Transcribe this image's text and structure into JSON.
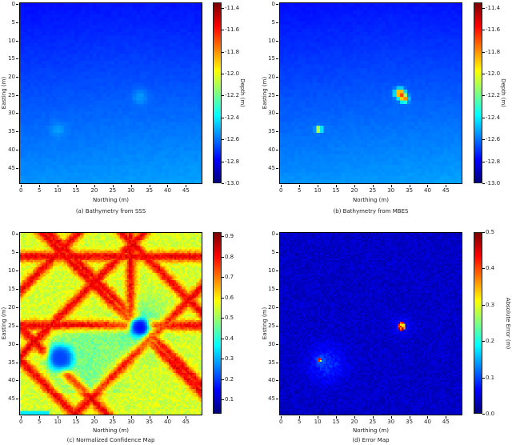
{
  "chart_data": [
    {
      "id": "a",
      "type": "heatmap",
      "title": "(a) Bathymetry from SSS",
      "xlabel": "Northing (m)",
      "ylabel": "Easting (m)",
      "xticks": [
        "0",
        "5",
        "10",
        "15",
        "20",
        "25",
        "30",
        "35",
        "40",
        "45"
      ],
      "yticks": [
        "0",
        "5",
        "10",
        "15",
        "20",
        "25",
        "30",
        "35",
        "40",
        "45"
      ],
      "xlim": [
        0,
        50
      ],
      "ylim": [
        0,
        50
      ],
      "colormap": "jet",
      "colorbar": {
        "label": "Depth (m)",
        "ticks": [
          "-11.4",
          "-11.6",
          "-11.8",
          "-12.0",
          "-12.2",
          "-12.4",
          "-12.6",
          "-12.8",
          "-13.0"
        ],
        "range": [
          -13.0,
          -11.35
        ]
      },
      "description": "Mostly uniform depth about -12.75 m at top, shallowing toward -12.55 m at bottom; faint bumps near (33,26) and (10,35)",
      "features": [
        {
          "x": 33,
          "y": 26,
          "value": -12.6,
          "radius": 2
        },
        {
          "x": 10.5,
          "y": 35,
          "value": -12.62,
          "radius": 2
        }
      ]
    },
    {
      "id": "b",
      "type": "heatmap",
      "title": "(b) Bathymetry from MBES",
      "xlabel": "Northing (m)",
      "ylabel": "Easting (m)",
      "xticks": [
        "0",
        "5",
        "10",
        "15",
        "20",
        "25",
        "30",
        "35",
        "40",
        "45"
      ],
      "yticks": [
        "0",
        "5",
        "10",
        "15",
        "20",
        "25",
        "30",
        "35",
        "40",
        "45"
      ],
      "xlim": [
        0,
        50
      ],
      "ylim": [
        0,
        50
      ],
      "colormap": "jet",
      "colorbar": {
        "label": "Depth (m)",
        "ticks": [
          "-11.4",
          "-11.6",
          "-11.8",
          "-12.0",
          "-12.2",
          "-12.4",
          "-12.6",
          "-12.8",
          "-13.0"
        ],
        "range": [
          -13.0,
          -11.35
        ]
      },
      "description": "Background depth about -12.75 m at top to -12.55 m at bottom, with sharp peaks (objects) at (33,25)-(34,26.5) and (10.5,35)",
      "features": [
        {
          "x": 33,
          "y": 25,
          "value": -11.6,
          "radius": 1.2
        },
        {
          "x": 34.2,
          "y": 26.5,
          "value": -11.8,
          "radius": 1.0
        },
        {
          "x": 10.7,
          "y": 35,
          "value": -11.9,
          "radius": 0.8
        }
      ]
    },
    {
      "id": "c",
      "type": "heatmap",
      "title": "(c) Normalized Confidence Map",
      "xlabel": "Northing (m)",
      "ylabel": "Easting (m)",
      "xticks": [
        "0",
        "5",
        "10",
        "15",
        "20",
        "25",
        "30",
        "35",
        "40",
        "45"
      ],
      "yticks": [
        "0",
        "5",
        "10",
        "15",
        "20",
        "25",
        "30",
        "35",
        "40",
        "45"
      ],
      "xlim": [
        0,
        50
      ],
      "ylim": [
        0,
        50
      ],
      "colormap": "jet",
      "colorbar": {
        "label": "",
        "ticks": [
          "0.9",
          "0.8",
          "0.7",
          "0.6",
          "0.5",
          "0.4",
          "0.3",
          "0.2",
          "0.1"
        ],
        "range": [
          0.03,
          0.92
        ]
      },
      "description": "Confidence ~0.55-0.65 overall, with diagonal and horizontal high-confidence bands (~0.8) along survey track lines at Easting 6.5 and 25.5, and low-confidence holes (~0.15) around (33,26) and (11,35)",
      "features": [
        {
          "x": 33,
          "y": 26,
          "value": 0.15,
          "radius": 2.5
        },
        {
          "x": 11,
          "y": 34.5,
          "value": 0.2,
          "radius": 3.5
        }
      ]
    },
    {
      "id": "d",
      "type": "heatmap",
      "title": "(d) Error Map",
      "xlabel": "Northing (m)",
      "ylabel": "Easting (m)",
      "xticks": [
        "0",
        "5",
        "10",
        "15",
        "20",
        "25",
        "30",
        "35",
        "40",
        "45"
      ],
      "yticks": [
        "0",
        "5",
        "10",
        "15",
        "20",
        "25",
        "30",
        "35",
        "40",
        "45"
      ],
      "xlim": [
        0,
        50
      ],
      "ylim": [
        0,
        50
      ],
      "colormap": "jet",
      "colorbar": {
        "label": "Absolute Error (m)",
        "ticks": [
          "0.5",
          "0.4",
          "0.3",
          "0.2",
          "0.1",
          "0.0"
        ],
        "range": [
          0.0,
          0.5
        ]
      },
      "description": "Near-zero error (~0.02) across map, with high error (~0.5) at objects near (33.5,25.5) and (10.8,35)",
      "features": [
        {
          "x": 33.5,
          "y": 25.7,
          "value": 0.5,
          "radius": 1.2
        },
        {
          "x": 10.8,
          "y": 35,
          "value": 0.45,
          "radius": 0.6
        }
      ]
    }
  ],
  "panels": {
    "a": {
      "caption": "(a) Bathymetry from SSS",
      "xlabel": "Northing (m)",
      "ylabel": "Easting (m)",
      "clabel": "Depth (m)"
    },
    "b": {
      "caption": "(b) Bathymetry from MBES",
      "xlabel": "Northing (m)",
      "ylabel": "Easting (m)",
      "clabel": "Depth (m)"
    },
    "c": {
      "caption": "(c) Normalized Confidence Map",
      "xlabel": "Northing (m)",
      "ylabel": "Easting (m)",
      "clabel": ""
    },
    "d": {
      "caption": "(d) Error Map",
      "xlabel": "Northing (m)",
      "ylabel": "Easting (m)",
      "clabel": "Absolute Error (m)"
    }
  }
}
